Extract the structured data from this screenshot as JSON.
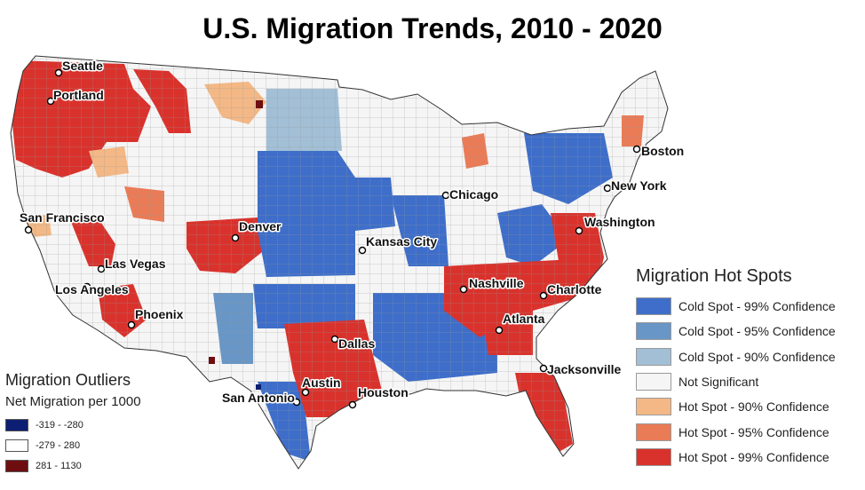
{
  "title": "U.S. Migration Trends, 2010 - 2020",
  "colors": {
    "cold99": "#3e6ec9",
    "cold95": "#6896c6",
    "cold90": "#a2bfd6",
    "not_significant": "#f5f5f5",
    "hot90": "#f3b886",
    "hot95": "#ea7b57",
    "hot99": "#d9322c",
    "outlier_low": "#0d1f73",
    "outlier_mid": "#ffffff",
    "outlier_high": "#6e0e10"
  },
  "hotspot_legend": {
    "title": "Migration Hot Spots",
    "items": [
      {
        "label": "Cold Spot - 99% Confidence",
        "color": "#3e6ec9"
      },
      {
        "label": "Cold Spot - 95% Confidence",
        "color": "#6896c6"
      },
      {
        "label": "Cold Spot - 90% Confidence",
        "color": "#a2bfd6"
      },
      {
        "label": "Not Significant",
        "color": "#f5f5f5"
      },
      {
        "label": "Hot Spot - 90% Confidence",
        "color": "#f3b886"
      },
      {
        "label": "Hot Spot - 95% Confidence",
        "color": "#ea7b57"
      },
      {
        "label": "Hot Spot - 99% Confidence",
        "color": "#d9322c"
      }
    ]
  },
  "outlier_legend": {
    "title": "Migration Outliers",
    "subtitle": "Net Migration per 1000",
    "items": [
      {
        "label": "-319 - -280",
        "color": "#0d1f73"
      },
      {
        "label": "-279 - 280",
        "color": "#ffffff"
      },
      {
        "label": "281 - 1130",
        "color": "#6e0e10"
      }
    ]
  },
  "cities": [
    {
      "name": "Seattle"
    },
    {
      "name": "Portland"
    },
    {
      "name": "San Francisco"
    },
    {
      "name": "Las Vegas"
    },
    {
      "name": "Los Angeles"
    },
    {
      "name": "Phoenix"
    },
    {
      "name": "Denver"
    },
    {
      "name": "Dallas"
    },
    {
      "name": "Austin"
    },
    {
      "name": "San Antonio"
    },
    {
      "name": "Houston"
    },
    {
      "name": "Kansas City"
    },
    {
      "name": "Chicago"
    },
    {
      "name": "Nashville"
    },
    {
      "name": "Atlanta"
    },
    {
      "name": "Charlotte"
    },
    {
      "name": "Washington"
    },
    {
      "name": "New York"
    },
    {
      "name": "Boston"
    },
    {
      "name": "Jacksonville"
    }
  ]
}
